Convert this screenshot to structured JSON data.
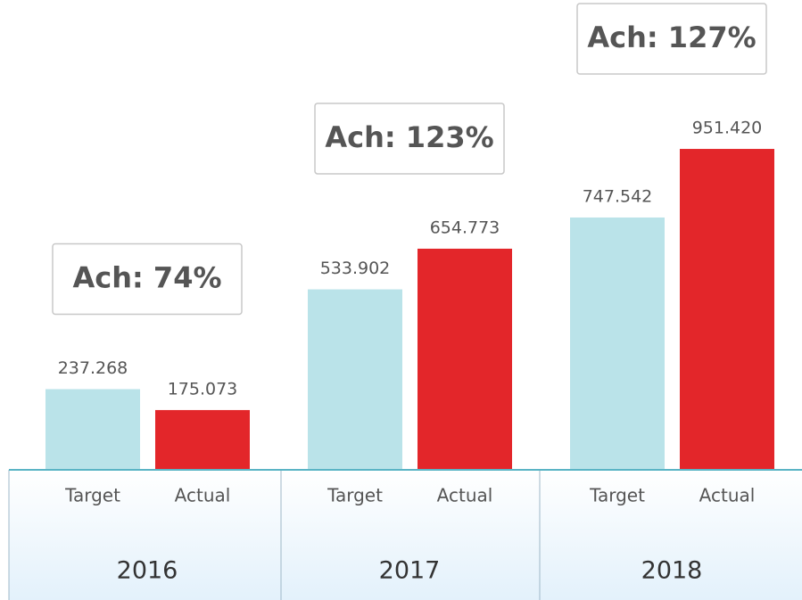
{
  "chart_data": {
    "type": "bar",
    "categories": [
      "2016",
      "2017",
      "2018"
    ],
    "series": [
      {
        "name": "Target",
        "color": "#bae3e9",
        "values": [
          237.268,
          533.902,
          747.542
        ],
        "value_labels": [
          "237.268",
          "533.902",
          "747.542"
        ]
      },
      {
        "name": "Actual",
        "color": "#e3262a",
        "values": [
          175.073,
          654.773,
          951.42
        ],
        "value_labels": [
          "175.073",
          "654.773",
          "951.420"
        ]
      }
    ],
    "annotations": [
      "Ach: 74%",
      "Ach: 123%",
      "Ach: 127%"
    ]
  }
}
